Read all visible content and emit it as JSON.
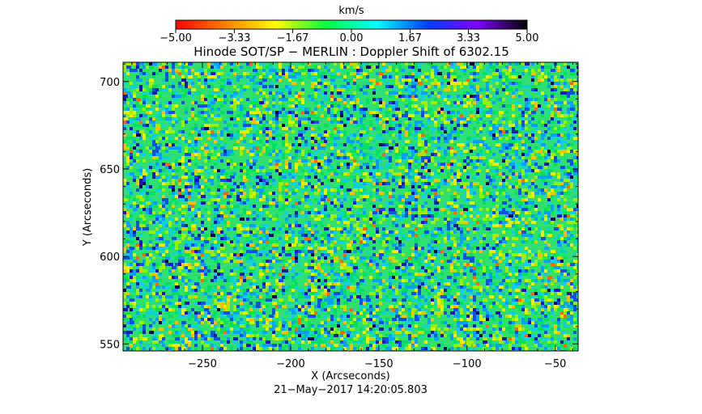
{
  "chart_data": {
    "type": "heatmap",
    "title": "Hinode SOT/SP − MERLIN : Doppler Shift of 6302.15",
    "xlabel": "X (Arcseconds)",
    "ylabel": "Y (Arcseconds)",
    "xlim": [
      -295,
      -37
    ],
    "ylim": [
      546,
      711
    ],
    "x_ticks": [
      -250,
      -200,
      -150,
      -100,
      -50
    ],
    "x_tick_labels": [
      "−250",
      "−200",
      "−150",
      "−100",
      "−50"
    ],
    "y_ticks": [
      550,
      600,
      650,
      700
    ],
    "y_tick_labels": [
      "550",
      "600",
      "650",
      "700"
    ],
    "colorbar": {
      "label": "km/s",
      "range": [
        -5.0,
        5.0
      ],
      "ticks": [
        -5.0,
        -3.33,
        -1.67,
        0.0,
        1.67,
        3.33,
        5.0
      ],
      "tick_labels": [
        "−5.00",
        "−3.33",
        "−1.67",
        "0.00",
        "1.67",
        "3.33",
        "5.00"
      ],
      "colors": [
        "#ff0000",
        "#ff8000",
        "#ffff00",
        "#00ff40",
        "#00ffff",
        "#0040ff",
        "#8000ff",
        "#000000"
      ]
    },
    "timestamp": "21−May−2017  14:20:05.803"
  }
}
